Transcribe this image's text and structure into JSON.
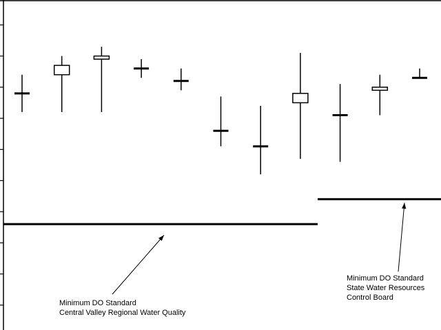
{
  "chart_data": {
    "type": "box",
    "ylim": [
      0.2,
      10.8
    ],
    "yticks": [
      1,
      2,
      3,
      4,
      5,
      6,
      7,
      8,
      9,
      10
    ],
    "color": "#000000",
    "boxes": [
      {
        "high": 8.4,
        "low": 7.2,
        "upper": 7.8,
        "lower": 7.8
      },
      {
        "high": 9.0,
        "low": 7.2,
        "upper": 8.7,
        "lower": 8.4
      },
      {
        "high": 9.3,
        "low": 7.2,
        "upper": 9.0,
        "lower": 8.9
      },
      {
        "high": 8.9,
        "low": 8.3,
        "upper": 8.6,
        "lower": 8.6
      },
      {
        "high": 8.6,
        "low": 7.9,
        "upper": 8.2,
        "lower": 8.2
      },
      {
        "high": 7.7,
        "low": 6.1,
        "upper": 6.6,
        "lower": 6.6
      },
      {
        "high": 7.4,
        "low": 5.2,
        "upper": 6.1,
        "lower": 6.1
      },
      {
        "high": 9.1,
        "low": 5.7,
        "upper": 7.8,
        "lower": 7.5
      },
      {
        "high": 8.1,
        "low": 5.6,
        "upper": 7.1,
        "lower": 7.1
      },
      {
        "high": 8.4,
        "low": 7.1,
        "upper": 8.0,
        "lower": 7.9
      },
      {
        "high": 8.6,
        "low": 8.3,
        "upper": 8.3,
        "lower": 8.3
      }
    ],
    "reference_lines": [
      {
        "value": 3.6,
        "label": [
          "Minimum DO Standard",
          "Central Valley Regional Water Quality"
        ]
      },
      {
        "value": 4.4,
        "label": [
          "Minimum DO Standard",
          "State Water Resources",
          "Control Board"
        ]
      }
    ]
  }
}
